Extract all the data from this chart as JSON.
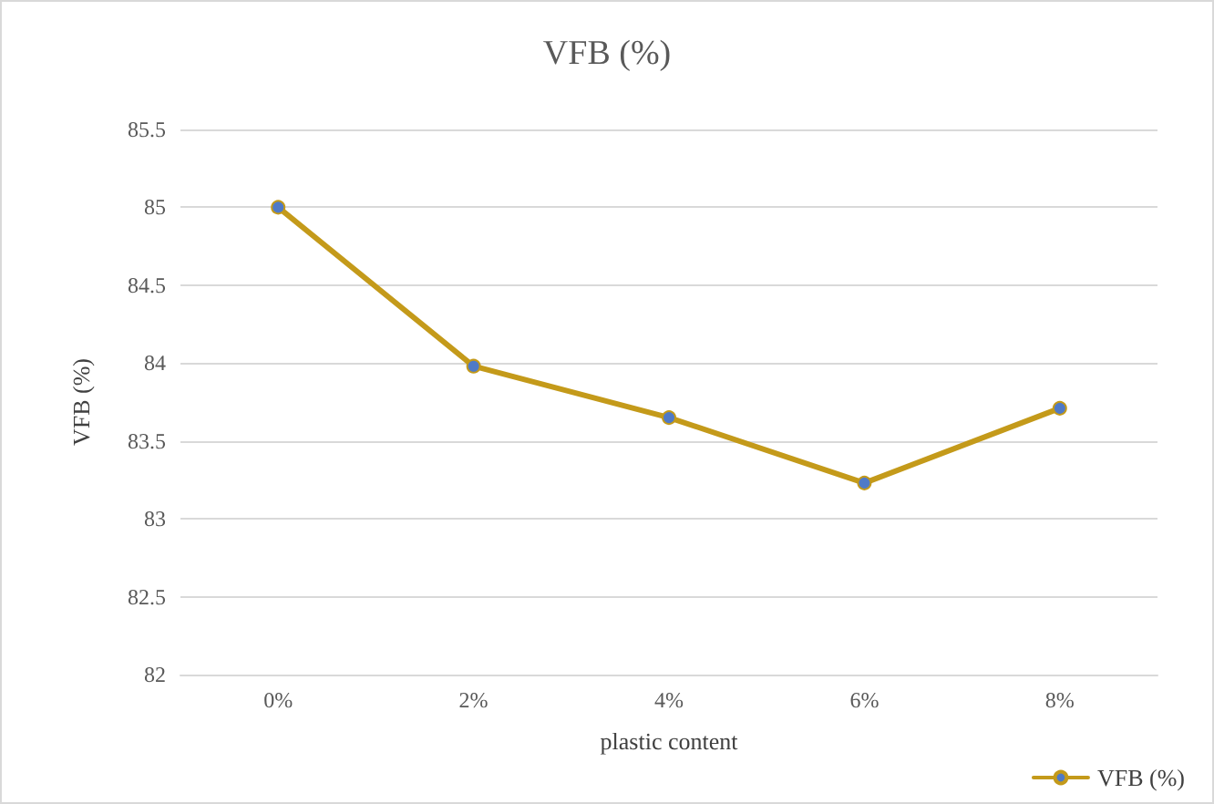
{
  "chart_data": {
    "type": "line",
    "title": "VFB (%)",
    "xlabel": "plastic content",
    "ylabel": "VFB (%)",
    "categories": [
      "0%",
      "2%",
      "4%",
      "6%",
      "8%"
    ],
    "series": [
      {
        "name": "VFB (%)",
        "color": "#c49a1a",
        "values": [
          85.0,
          83.98,
          83.65,
          83.23,
          83.71
        ]
      }
    ],
    "ylim": [
      82,
      85.5
    ],
    "yticks": [
      82,
      82.5,
      83,
      83.5,
      84,
      84.5,
      85,
      85.5
    ],
    "grid": "y",
    "legend": "bottom right",
    "marker": "circle",
    "line_style": "solid"
  }
}
